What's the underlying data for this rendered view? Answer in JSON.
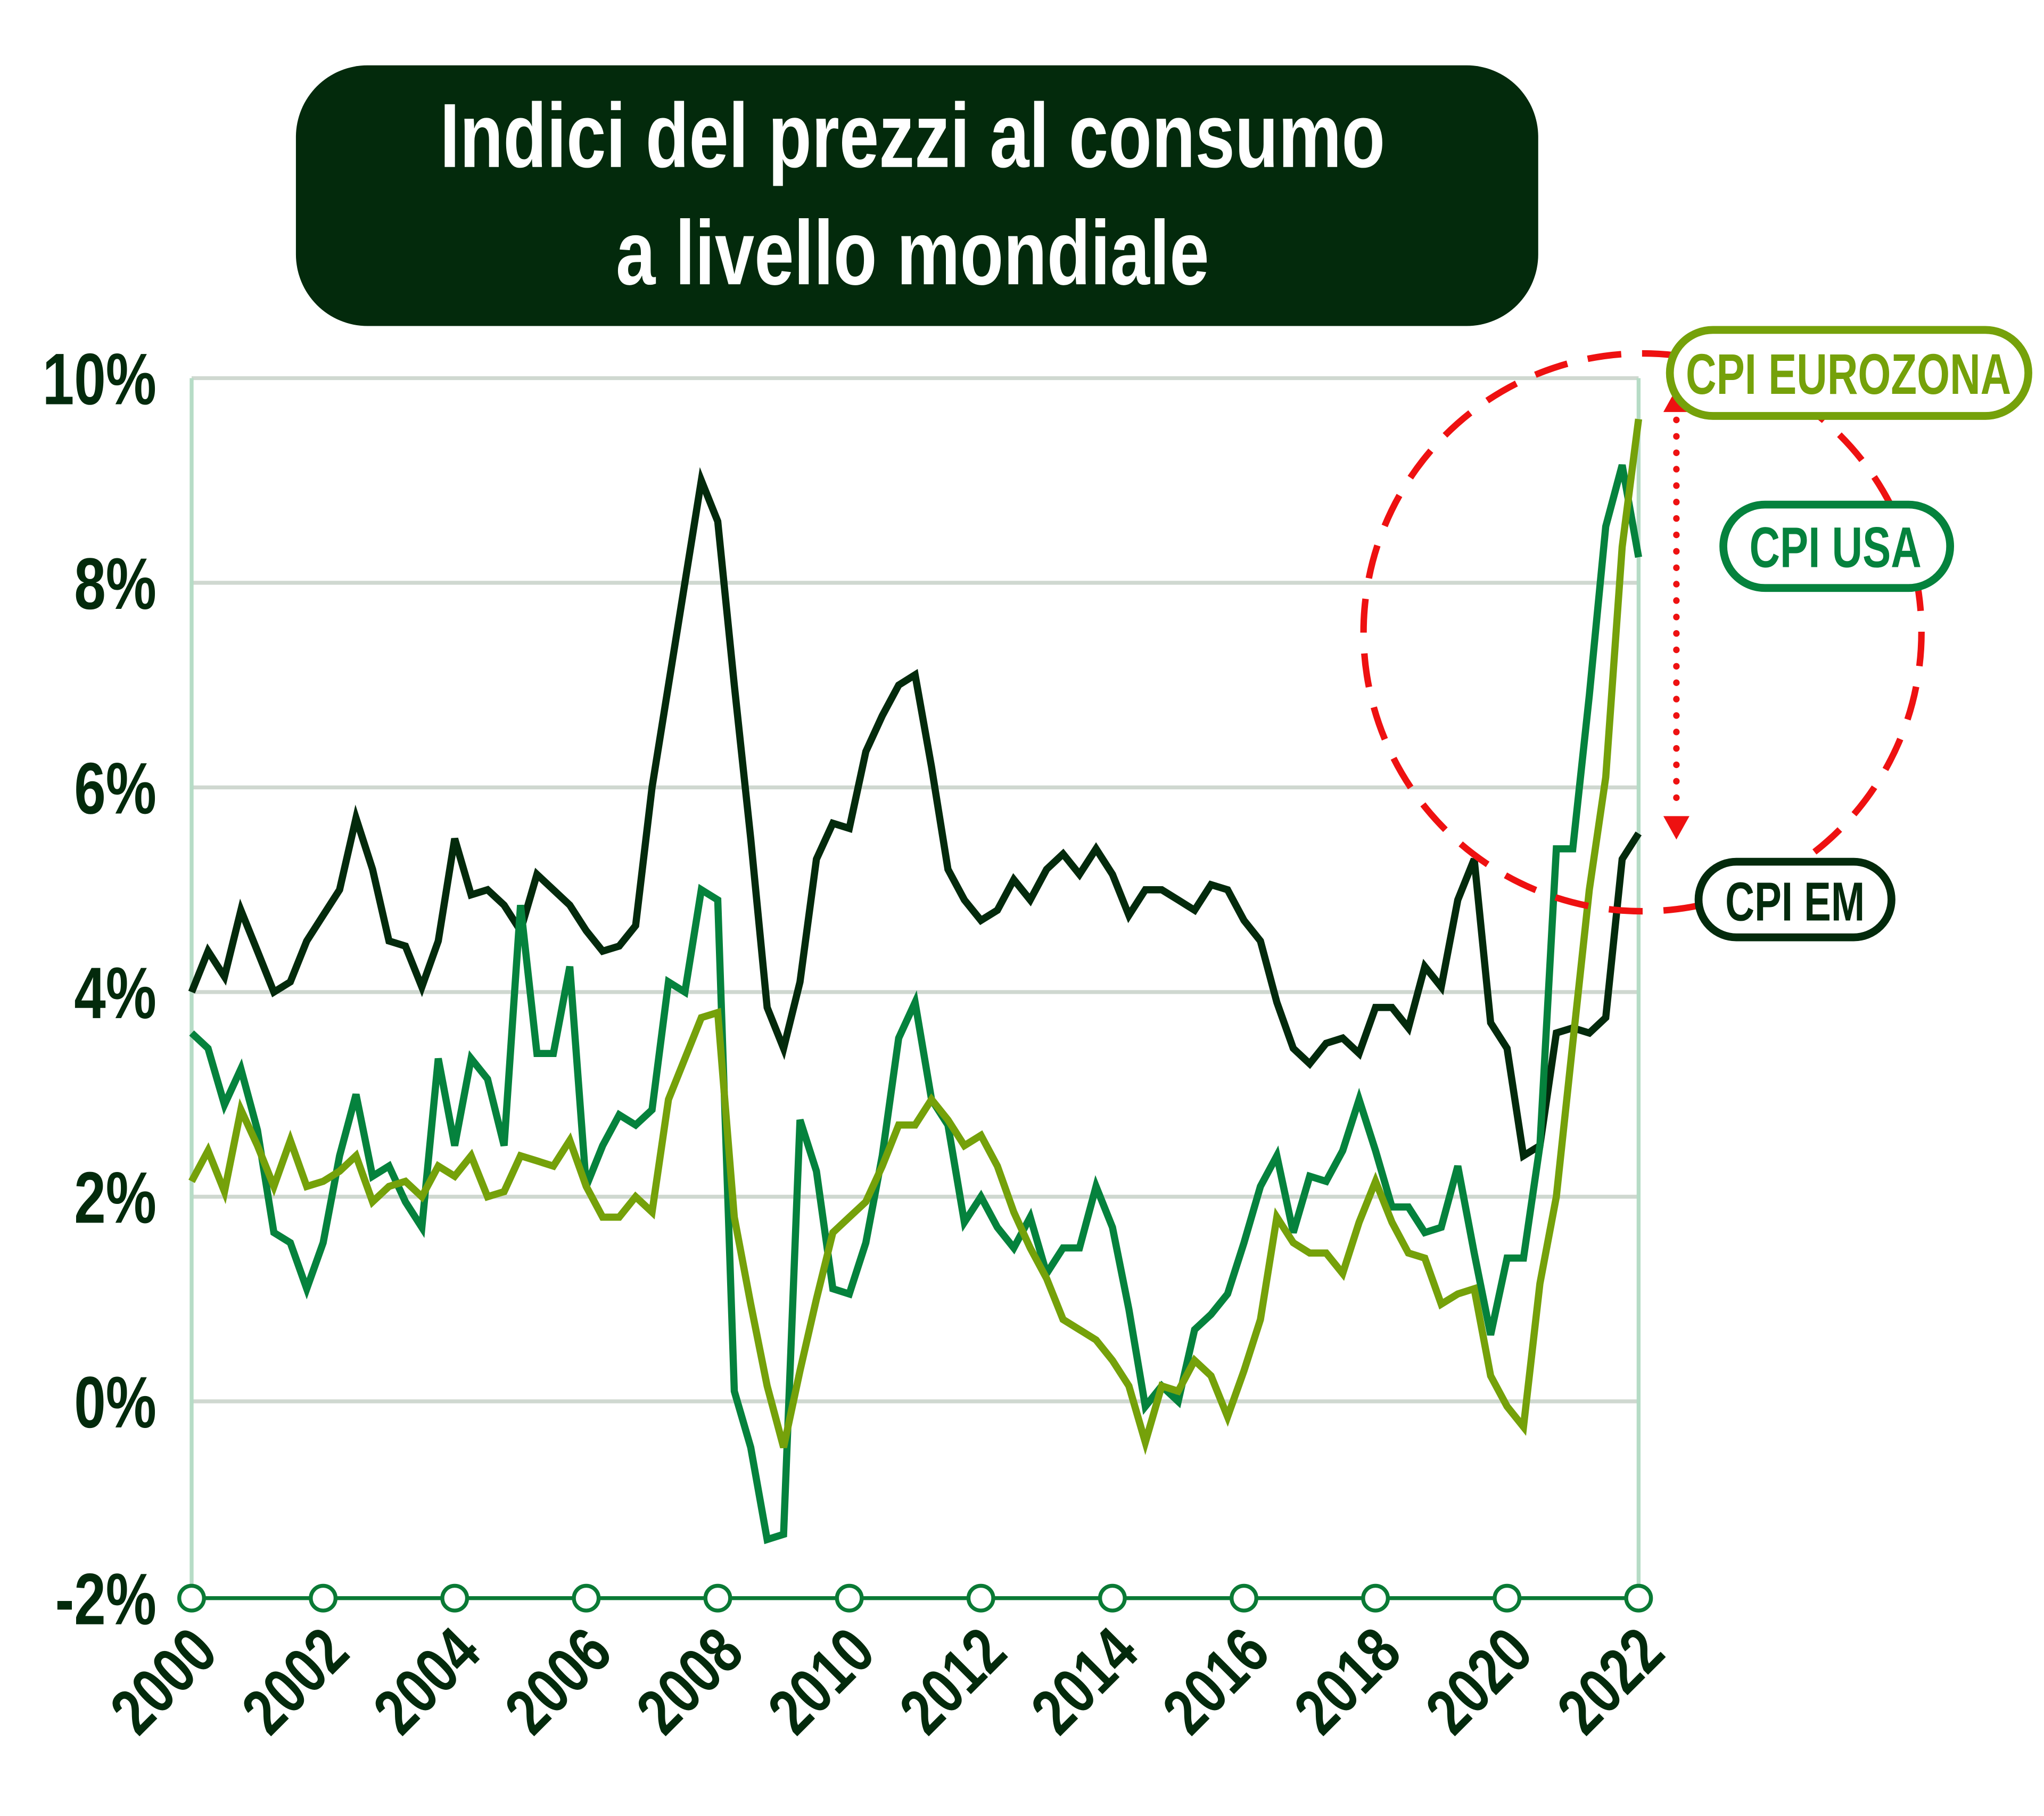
{
  "chart_data": {
    "type": "line",
    "title_line1": "Indici del prezzi al consumo",
    "title_line2": "a livello mondiale",
    "xlabel": "",
    "ylabel": "",
    "x_start": 2000,
    "x_step": 0.25,
    "xlim": [
      2000,
      2022
    ],
    "ylim": [
      -2,
      10
    ],
    "x_ticks": [
      "2000",
      "2002",
      "2004",
      "2006",
      "2008",
      "2010",
      "2012",
      "2014",
      "2016",
      "2018",
      "2020",
      "2022"
    ],
    "y_ticks": [
      {
        "v": 10,
        "label": "10%"
      },
      {
        "v": 8,
        "label": "8%"
      },
      {
        "v": 6,
        "label": "6%"
      },
      {
        "v": 4,
        "label": "4%"
      },
      {
        "v": 2,
        "label": "2%"
      },
      {
        "v": 0,
        "label": "0%"
      },
      {
        "v": -2,
        "label": "-2%"
      }
    ],
    "grid": true,
    "colors": {
      "title_bg": "#032a0c",
      "grid": "#cfd8d0",
      "axis": "#b6dcc6",
      "x_axis": "#0a7a35",
      "highlight": "#ee1111"
    },
    "series": [
      {
        "name": "CPI EM",
        "color": "#032a0c",
        "values": [
          4.0,
          4.4,
          4.15,
          4.8,
          4.4,
          4.0,
          4.1,
          4.5,
          4.75,
          5.0,
          5.7,
          5.2,
          4.5,
          4.45,
          4.05,
          4.5,
          5.5,
          4.95,
          5.0,
          4.85,
          4.6,
          5.15,
          5.0,
          4.85,
          4.6,
          4.4,
          4.45,
          4.65,
          6.0,
          7.0,
          8.0,
          9.0,
          8.6,
          7.0,
          5.5,
          3.85,
          3.45,
          4.1,
          5.3,
          5.65,
          5.6,
          6.35,
          6.7,
          7.0,
          7.1,
          6.2,
          5.2,
          4.9,
          4.7,
          4.8,
          5.1,
          4.9,
          5.2,
          5.35,
          5.15,
          5.4,
          5.15,
          4.75,
          5.0,
          5.0,
          4.9,
          4.8,
          5.05,
          5.0,
          4.7,
          4.5,
          3.9,
          3.45,
          3.3,
          3.5,
          3.55,
          3.4,
          3.85,
          3.85,
          3.65,
          4.25,
          4.05,
          4.9,
          5.3,
          3.7,
          3.45,
          2.4,
          2.5,
          3.6,
          3.65,
          3.6,
          3.75,
          5.3,
          5.55
        ]
      },
      {
        "name": "CPI USA",
        "color": "#05823d",
        "values": [
          3.6,
          3.45,
          2.9,
          3.25,
          2.65,
          1.65,
          1.55,
          1.1,
          1.55,
          2.4,
          3.0,
          2.2,
          2.3,
          1.95,
          1.7,
          3.35,
          2.5,
          3.35,
          3.15,
          2.5,
          4.85,
          3.4,
          3.4,
          4.25,
          2.1,
          2.5,
          2.8,
          2.7,
          2.85,
          4.1,
          4.0,
          5.0,
          4.9,
          0.1,
          -0.45,
          -1.35,
          -1.3,
          2.75,
          2.25,
          1.1,
          1.05,
          1.55,
          2.4,
          3.55,
          3.9,
          2.95,
          2.7,
          1.75,
          2.0,
          1.7,
          1.5,
          1.8,
          1.25,
          1.5,
          1.5,
          2.1,
          1.7,
          0.9,
          -0.05,
          0.15,
          0.0,
          0.7,
          0.85,
          1.05,
          1.55,
          2.1,
          2.4,
          1.65,
          2.2,
          2.15,
          2.45,
          2.95,
          2.45,
          1.9,
          1.9,
          1.65,
          1.7,
          2.3,
          1.45,
          0.65,
          1.4,
          1.4,
          2.5,
          5.4,
          5.4,
          6.9,
          8.55,
          9.15,
          8.25
        ]
      },
      {
        "name": "CPI EUROZONA",
        "color": "#75a10a",
        "values": [
          2.15,
          2.45,
          2.05,
          2.85,
          2.5,
          2.1,
          2.55,
          2.1,
          2.15,
          2.25,
          2.4,
          1.95,
          2.1,
          2.15,
          2.0,
          2.3,
          2.2,
          2.4,
          2.0,
          2.05,
          2.4,
          2.35,
          2.3,
          2.55,
          2.1,
          1.8,
          1.8,
          2.0,
          1.85,
          2.95,
          3.35,
          3.75,
          3.8,
          1.8,
          0.95,
          0.15,
          -0.45,
          0.3,
          1.0,
          1.65,
          1.8,
          1.95,
          2.3,
          2.7,
          2.7,
          2.95,
          2.75,
          2.5,
          2.6,
          2.3,
          1.85,
          1.5,
          1.2,
          0.8,
          0.7,
          0.6,
          0.4,
          0.15,
          -0.4,
          0.15,
          0.1,
          0.4,
          0.25,
          -0.15,
          0.3,
          0.8,
          1.8,
          1.55,
          1.45,
          1.45,
          1.25,
          1.75,
          2.15,
          1.75,
          1.45,
          1.4,
          0.95,
          1.05,
          1.1,
          0.25,
          -0.05,
          -0.25,
          1.15,
          2.0,
          3.5,
          5.0,
          6.1,
          8.35,
          9.6
        ]
      }
    ],
    "legend": [
      {
        "label": "CPI EUROZONA",
        "color": "#75a10a"
      },
      {
        "label": "CPI USA",
        "color": "#05823d"
      },
      {
        "label": "CPI EM",
        "color": "#032a0c"
      }
    ],
    "legend_placement": "right"
  }
}
